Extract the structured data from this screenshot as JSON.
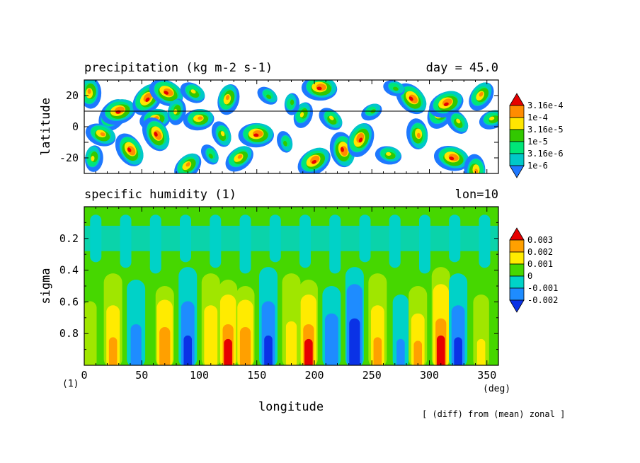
{
  "colors": {
    "precip_levels": [
      "#1e78ff",
      "#00c8c8",
      "#00e678",
      "#32c800",
      "#ffe600",
      "#ff8c00",
      "#e60000"
    ],
    "humidity_levels": [
      "#0a32e6",
      "#1e8cff",
      "#00d2c8",
      "#46d700",
      "#a0e600",
      "#ffeb00",
      "#ffa000",
      "#e60000"
    ]
  },
  "chart_data": [
    {
      "type": "heatmap",
      "title": "precipitation (kg m-2 s-1)",
      "annotation_right": "day = 45.0",
      "ylabel": "latitude",
      "xlim": [
        0,
        360
      ],
      "ylim": [
        -30,
        30
      ],
      "yticks": [
        20,
        10,
        0,
        -10,
        -20
      ],
      "ytick_labels": [
        "20",
        "",
        "0",
        "",
        "-20"
      ],
      "reference_line_lat": 10,
      "colorbar": {
        "labels": [
          "3.16e-4",
          "1e-4",
          "3.16e-5",
          "1e-5",
          "3.16e-6",
          "1e-6"
        ],
        "levels": [
          0.000316,
          0.0001,
          3.16e-05,
          1e-05,
          3.16e-06,
          1e-06
        ]
      },
      "blobs": [
        {
          "lon": 5,
          "lat": 22,
          "level": 5
        },
        {
          "lon": 25,
          "lat": 8,
          "level": 6
        },
        {
          "lon": 30,
          "lat": 10,
          "level": 6
        },
        {
          "lon": 15,
          "lat": -5,
          "level": 5
        },
        {
          "lon": 40,
          "lat": -15,
          "level": 6
        },
        {
          "lon": 8,
          "lat": -20,
          "level": 4
        },
        {
          "lon": 55,
          "lat": 18,
          "level": 6
        },
        {
          "lon": 62,
          "lat": 5,
          "level": 5
        },
        {
          "lon": 72,
          "lat": 22,
          "level": 6
        },
        {
          "lon": 63,
          "lat": -5,
          "level": 6
        },
        {
          "lon": 80,
          "lat": 10,
          "level": 4
        },
        {
          "lon": 90,
          "lat": -25,
          "level": 5
        },
        {
          "lon": 100,
          "lat": 5,
          "level": 5
        },
        {
          "lon": 95,
          "lat": 22,
          "level": 4
        },
        {
          "lon": 120,
          "lat": -5,
          "level": 4
        },
        {
          "lon": 125,
          "lat": 18,
          "level": 5
        },
        {
          "lon": 135,
          "lat": -20,
          "level": 5
        },
        {
          "lon": 150,
          "lat": -5,
          "level": 6
        },
        {
          "lon": 160,
          "lat": 20,
          "level": 3
        },
        {
          "lon": 175,
          "lat": -10,
          "level": 3
        },
        {
          "lon": 190,
          "lat": 8,
          "level": 4
        },
        {
          "lon": 200,
          "lat": -22,
          "level": 6
        },
        {
          "lon": 205,
          "lat": 25,
          "level": 6
        },
        {
          "lon": 215,
          "lat": 5,
          "level": 4
        },
        {
          "lon": 225,
          "lat": -15,
          "level": 6
        },
        {
          "lon": 240,
          "lat": -8,
          "level": 6
        },
        {
          "lon": 250,
          "lat": 10,
          "level": 3
        },
        {
          "lon": 265,
          "lat": -18,
          "level": 4
        },
        {
          "lon": 285,
          "lat": 18,
          "level": 6
        },
        {
          "lon": 290,
          "lat": -5,
          "level": 5
        },
        {
          "lon": 310,
          "lat": 10,
          "level": 6
        },
        {
          "lon": 315,
          "lat": 15,
          "level": 6
        },
        {
          "lon": 320,
          "lat": -20,
          "level": 6
        },
        {
          "lon": 325,
          "lat": 3,
          "level": 4
        },
        {
          "lon": 340,
          "lat": -28,
          "level": 5
        },
        {
          "lon": 345,
          "lat": 20,
          "level": 5
        },
        {
          "lon": 355,
          "lat": 5,
          "level": 4
        },
        {
          "lon": 270,
          "lat": 25,
          "level": 3
        },
        {
          "lon": 110,
          "lat": -18,
          "level": 3
        },
        {
          "lon": 180,
          "lat": 15,
          "level": 3
        }
      ]
    },
    {
      "type": "heatmap",
      "title": "specific humidity (1)",
      "annotation_right": "lon=10",
      "ylabel": "sigma",
      "xlabel": "longitude",
      "xlim": [
        0,
        360
      ],
      "ylim": [
        1.0,
        0.0
      ],
      "xticks": [
        0,
        50,
        100,
        150,
        200,
        250,
        300,
        350
      ],
      "yticks": [
        0.2,
        0.4,
        0.6,
        0.8
      ],
      "x_unit": "(deg)",
      "y_unit": "(1)",
      "colorbar": {
        "labels": [
          "0.003",
          "0.002",
          "0.001",
          "0",
          "-0.001",
          "-0.002"
        ],
        "levels": [
          0.003,
          0.002,
          0.001,
          0,
          -0.001,
          -0.002
        ]
      },
      "columns": [
        {
          "lon": 5,
          "amp": 0.0006
        },
        {
          "lon": 25,
          "amp": 0.0022
        },
        {
          "lon": 45,
          "amp": -0.0016
        },
        {
          "lon": 70,
          "amp": 0.0025
        },
        {
          "lon": 90,
          "amp": -0.0022
        },
        {
          "lon": 110,
          "amp": 0.0018
        },
        {
          "lon": 125,
          "amp": 0.003
        },
        {
          "lon": 140,
          "amp": 0.0026
        },
        {
          "lon": 160,
          "amp": -0.0024
        },
        {
          "lon": 180,
          "amp": 0.0016
        },
        {
          "lon": 195,
          "amp": 0.0032
        },
        {
          "lon": 215,
          "amp": -0.002
        },
        {
          "lon": 235,
          "amp": -0.0026
        },
        {
          "lon": 255,
          "amp": 0.0024
        },
        {
          "lon": 275,
          "amp": -0.0012
        },
        {
          "lon": 290,
          "amp": 0.0022
        },
        {
          "lon": 310,
          "amp": 0.003
        },
        {
          "lon": 325,
          "amp": -0.0022
        },
        {
          "lon": 345,
          "amp": 0.0012
        }
      ],
      "footnote": "[ (diff) from (mean) zonal ]"
    }
  ]
}
